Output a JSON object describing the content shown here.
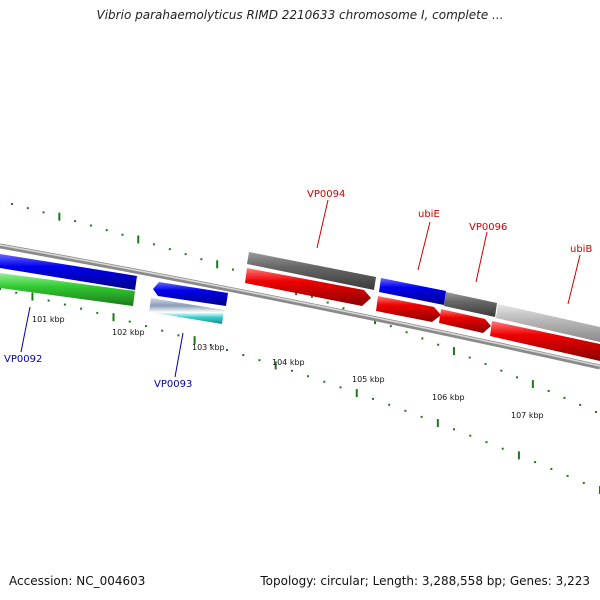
{
  "title": "Vibrio parahaemolyticus RIMD 2210633 chromosome I, complete ...",
  "footer": {
    "accession": "Accession: NC_004603",
    "summary": "Topology: circular; Length: 3,288,558 bp; Genes: 3,223"
  },
  "scale": {
    "unit": "kbp",
    "tick_labels": [
      "101 kbp",
      "102 kbp",
      "103 kbp",
      "104 kbp",
      "105 kbp",
      "106 kbp",
      "107 kbp"
    ]
  },
  "colors": {
    "backbone": "#8a8a8a",
    "tick": "#1a7a1a",
    "gene_red": "#ee0000",
    "gene_blue": "#0000ee",
    "gene_green": "#33cc33",
    "gene_dark_gray": "#666666",
    "gene_light_gray": "#bbbbbb",
    "gene_cyan": "#33cccc",
    "label_red": "#cc0000",
    "label_blue": "#0000aa"
  },
  "genes": [
    {
      "label": "VP0092",
      "color": "label_blue"
    },
    {
      "label": "VP0093",
      "color": "label_blue"
    },
    {
      "label": "VP0094",
      "color": "label_red"
    },
    {
      "label": "ubiE",
      "color": "label_red"
    },
    {
      "label": "VP0096",
      "color": "label_red"
    },
    {
      "label": "ubiB",
      "color": "label_red"
    }
  ]
}
